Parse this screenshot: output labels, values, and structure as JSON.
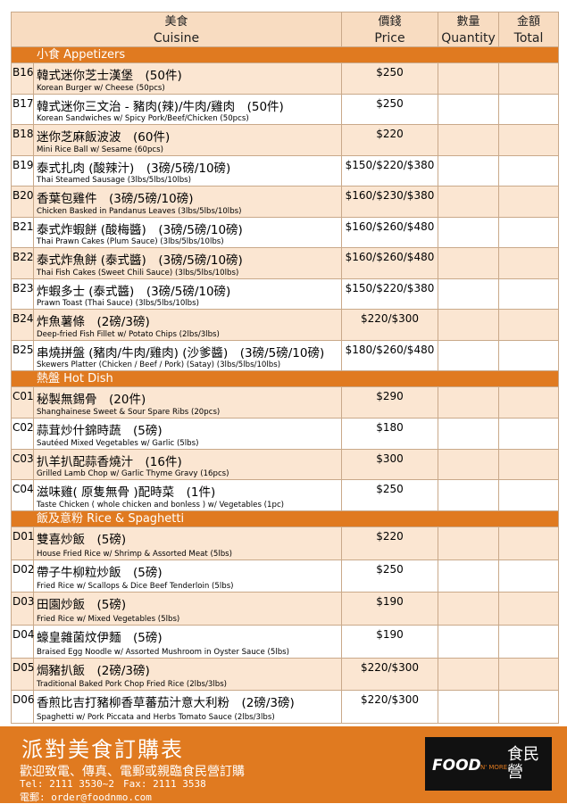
{
  "header": {
    "cuisine_zh": "美食",
    "cuisine_en": "Cuisine",
    "price_zh": "價錢",
    "price_en": "Price",
    "qty_zh": "數量",
    "qty_en": "Quantity",
    "total_zh": "金額",
    "total_en": "Total"
  },
  "sections": [
    {
      "title": "小食 Appetizers",
      "items": [
        {
          "code": "B16",
          "name": "韓式迷你芝士漢堡　(50件)",
          "desc": "Korean Burger w/ Cheese (50pcs)",
          "price": "$250"
        },
        {
          "code": "B17",
          "name": "韓式迷你三文治 - 豬肉(辣)/牛肉/雞肉　(50件)",
          "desc": "Korean Sandwiches w/ Spicy Pork/Beef/Chicken (50pcs)",
          "price": "$250"
        },
        {
          "code": "B18",
          "name": "迷你芝麻飯波波　(60件)",
          "desc": "Mini Rice Ball w/ Sesame (60pcs)",
          "price": "$220"
        },
        {
          "code": "B19",
          "name": "泰式扎肉 (酸辣汁)　(3磅/5磅/10磅)",
          "desc": "Thai Steamed Sausage (3lbs/5lbs/10lbs)",
          "price": "$150/$220/$380"
        },
        {
          "code": "B20",
          "name": "香葉包雞件　(3磅/5磅/10磅)",
          "desc": "Chicken Basked in Pandanus Leaves (3lbs/5lbs/10lbs)",
          "price": "$160/$230/$380"
        },
        {
          "code": "B21",
          "name": "泰式炸蝦餅 (酸梅醬)　(3磅/5磅/10磅)",
          "desc": "Thai Prawn Cakes (Plum Sauce) (3lbs/5lbs/10lbs)",
          "price": "$160/$260/$480"
        },
        {
          "code": "B22",
          "name": "泰式炸魚餅 (泰式醬)　(3磅/5磅/10磅)",
          "desc": "Thai Fish Cakes (Sweet Chili Sauce) (3lbs/5lbs/10lbs)",
          "price": "$160/$260/$480"
        },
        {
          "code": "B23",
          "name": "炸蝦多士 (泰式醬)　(3磅/5磅/10磅)",
          "desc": "Prawn Toast (Thai Sauce) (3lbs/5lbs/10lbs)",
          "price": "$150/$220/$380"
        },
        {
          "code": "B24",
          "name": "炸魚薯條　(2磅/3磅)",
          "desc": "Deep-fried Fish Fillet w/ Potato Chips (2lbs/3lbs)",
          "price": "$220/$300"
        },
        {
          "code": "B25",
          "name": "串燒拼盤 (豬肉/牛肉/雞肉) (沙爹醬)　(3磅/5磅/10磅)",
          "desc": "Skewers Platter (Chicken / Beef / Pork) (Satay) (3lbs/5lbs/10lbs)",
          "price": "$180/$260/$480"
        }
      ]
    },
    {
      "title": "熱盤 Hot Dish",
      "items": [
        {
          "code": "C01",
          "name": "秘製無錫骨　(20件)",
          "desc": "Shanghainese Sweet & Sour Spare Ribs (20pcs)",
          "price": "$290"
        },
        {
          "code": "C02",
          "name": "蒜茸炒什錦時蔬　(5磅)",
          "desc": "Sautéed Mixed Vegetables w/ Garlic (5lbs)",
          "price": "$180"
        },
        {
          "code": "C03",
          "name": "扒羊扒配蒜香燒汁　(16件)",
          "desc": "Grilled Lamb Chop w/ Garlic Thyme Gravy (16pcs)",
          "price": "$300"
        },
        {
          "code": "C04",
          "name": "滋味雞( 原隻無骨 )配時菜　(1件)",
          "desc": "Taste Chicken ( whole chicken and bonless ) w/ Vegetables (1pc)",
          "price": "$250"
        }
      ]
    },
    {
      "title": "飯及意粉 Rice & Spaghetti",
      "items": [
        {
          "code": "D01",
          "name": "雙喜炒飯　(5磅)",
          "desc": "House Fried Rice w/ Shrimp & Assorted Meat (5lbs)",
          "price": "$220"
        },
        {
          "code": "D02",
          "name": "帶子牛柳粒炒飯　(5磅)",
          "desc": "Fried Rice w/ Scallops & Dice Beef Tenderloin (5lbs)",
          "price": "$250"
        },
        {
          "code": "D03",
          "name": "田園炒飯　(5磅)",
          "desc": "Fried Rice w/ Mixed Vegetables (5lbs)",
          "price": "$190"
        },
        {
          "code": "D04",
          "name": "蠔皇雜菌炆伊麵　(5磅)",
          "desc": "Braised Egg Noodle w/ Assorted Mushroom in Oyster Sauce (5lbs)",
          "price": "$190"
        },
        {
          "code": "D05",
          "name": "焗豬扒飯　(2磅/3磅)",
          "desc": "Traditional Baked Pork Chop Fried Rice (2lbs/3lbs)",
          "price": "$220/$300"
        },
        {
          "code": "D06",
          "name": "香煎比吉打豬柳香草蕃茄汁意大利粉　(2磅/3磅)",
          "desc": "Spaghetti w/ Pork Piccata and Herbs Tomato Sauce (2lbs/3lbs)",
          "price": "$220/$300"
        }
      ]
    }
  ],
  "footer": {
    "title": "派對美食訂購表",
    "line": "歡迎致電、傳真、電郵或親臨食民營訂購",
    "tel": "Tel: 2111 3530~2",
    "fax": "Fax: 2111 3538",
    "email": "電郵: order@foodnmo.com"
  },
  "logo": {
    "en": "FOOD",
    "en2": "N' MORE",
    "zh": "食民營"
  }
}
